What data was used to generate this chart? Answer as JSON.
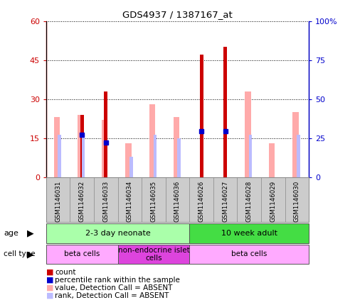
{
  "title": "GDS4937 / 1387167_at",
  "samples": [
    "GSM1146031",
    "GSM1146032",
    "GSM1146033",
    "GSM1146034",
    "GSM1146035",
    "GSM1146036",
    "GSM1146026",
    "GSM1146027",
    "GSM1146028",
    "GSM1146029",
    "GSM1146030"
  ],
  "count_values": [
    0,
    24,
    33,
    0,
    0,
    0,
    47,
    50,
    0,
    0,
    0
  ],
  "percentile_values": [
    0,
    27,
    22,
    0,
    0,
    0,
    29.5,
    29.5,
    0,
    0,
    0
  ],
  "absent_value_bars": [
    23,
    24,
    22,
    13,
    28,
    23,
    0,
    0,
    33,
    13,
    25
  ],
  "absent_rank_bars": [
    27,
    27,
    0,
    13,
    27,
    25,
    0,
    0,
    27,
    0,
    27
  ],
  "ylim_left": [
    0,
    60
  ],
  "ylim_right": [
    0,
    100
  ],
  "yticks_left": [
    0,
    15,
    30,
    45,
    60
  ],
  "yticks_right": [
    0,
    25,
    50,
    75,
    100
  ],
  "ytick_labels_left": [
    "0",
    "15",
    "30",
    "45",
    "60"
  ],
  "ytick_labels_right": [
    "0",
    "25",
    "50",
    "75",
    "100%"
  ],
  "color_count": "#cc0000",
  "color_percentile": "#0000cc",
  "color_absent_value": "#ffaaaa",
  "color_absent_rank": "#bbbbff",
  "age_groups": [
    {
      "label": "2-3 day neonate",
      "start": 0,
      "end": 6,
      "color": "#aaffaa"
    },
    {
      "label": "10 week adult",
      "start": 6,
      "end": 11,
      "color": "#44dd44"
    }
  ],
  "cell_groups": [
    {
      "label": "beta cells",
      "start": 0,
      "end": 3,
      "color": "#ffaaff"
    },
    {
      "label": "non-endocrine islet\ncells",
      "start": 3,
      "end": 6,
      "color": "#dd44dd"
    },
    {
      "label": "beta cells",
      "start": 6,
      "end": 11,
      "color": "#ffaaff"
    }
  ],
  "background_plot": "#ffffff",
  "background_sample": "#cccccc"
}
